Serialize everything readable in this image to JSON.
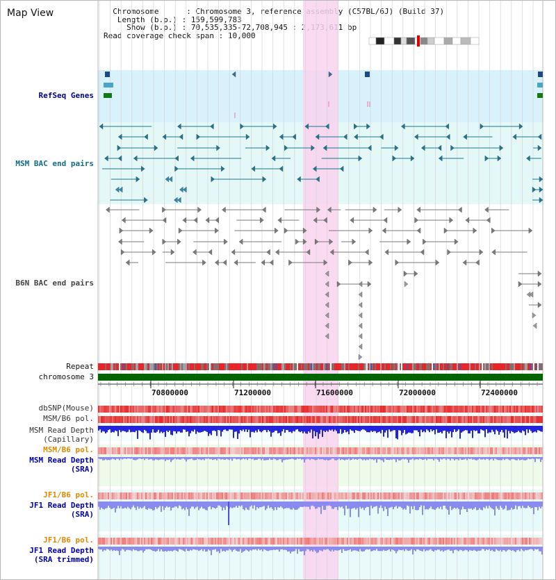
{
  "title": "Map View",
  "info": {
    "chromosome_label": "Chromosome",
    "chromosome_value": "Chromosome 3, reference assembly (C57BL/6J) (Build 37)",
    "length_label": "Length (b.p.)",
    "length_value": "159,599,783",
    "show_label": "Show (b.p.)",
    "show_value": "70,535,335-72,708,945 : 2,173,611 bp",
    "coverage_label": "Read coverage check span",
    "coverage_value": "10,000"
  },
  "tracks": {
    "refseq": "RefSeq Genes",
    "msm_bac": "MSM BAC end pairs",
    "b6n_bac": "B6N BAC end pairs",
    "repeat": "Repeat",
    "chromosome": "chromosome 3",
    "dbsnp": "dbSNP(Mouse)",
    "msm_b6_pol_1": "MSM/B6 pol.",
    "msm_depth_cap_1": "MSM Read Depth",
    "msm_depth_cap_2": "(Capillary)",
    "msm_b6_pol_2": "MSM/B6 pol.",
    "msm_depth_sra_1": "MSM Read Depth",
    "msm_depth_sra_2": "(SRA)",
    "jf1_b6_pol_1": "JF1/B6 pol.",
    "jf1_depth_sra_1": "JF1 Read Depth",
    "jf1_depth_sra_2": "(SRA)",
    "jf1_b6_pol_2": "JF1/B6 pol.",
    "jf1_depth_trim_1": "JF1 Read Depth",
    "jf1_depth_trim_2": "(SRA trimmed)"
  },
  "ruler": {
    "ticks": [
      "70800000",
      "71200000",
      "71600000",
      "72000000",
      "72400000"
    ]
  },
  "colors": {
    "refseq_label": "#00008b",
    "msm_label": "#0e6d86",
    "b6n_label": "#444444",
    "pol_label": "#e08a00",
    "depth_label": "#0000aa",
    "highlight": "#f9d4ee",
    "chromosome_bar": "#006400",
    "repeat_bar": "#e8262a",
    "depth_blue": "#2424e0",
    "depth_light": "#8a8aef"
  }
}
